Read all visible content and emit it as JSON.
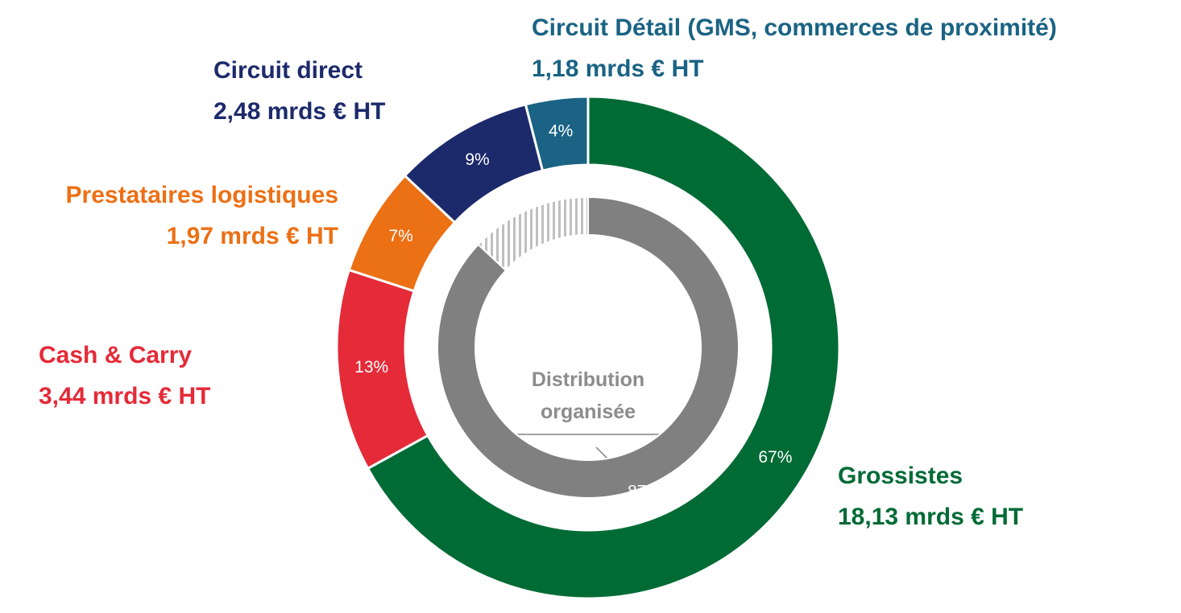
{
  "chart_data": {
    "type": "donut",
    "categories": [
      "Grossistes",
      "Cash & Carry",
      "Prestataires logistiques",
      "Circuit direct",
      "Circuit Détail (GMS, commerces de proximité)"
    ],
    "values": [
      67,
      13,
      7,
      9,
      4
    ],
    "value_labels": [
      "67%",
      "13%",
      "7%",
      "9%",
      "4%"
    ],
    "amounts": [
      "18,13 mrds € HT",
      "3,44 mrds € HT",
      "1,97 mrds € HT",
      "2,48 mrds € HT",
      "1,18 mrds € HT"
    ],
    "colors": [
      "#006b35",
      "#e52a38",
      "#ec7014",
      "#1c2a6b",
      "#1a6384"
    ],
    "inner": {
      "label": "Distribution organisée",
      "values": [
        87,
        13
      ],
      "value_labels": [
        "87%",
        null
      ],
      "colors": [
        "#808080",
        "#bfbfbf"
      ],
      "hatched": [
        false,
        true
      ]
    }
  }
}
